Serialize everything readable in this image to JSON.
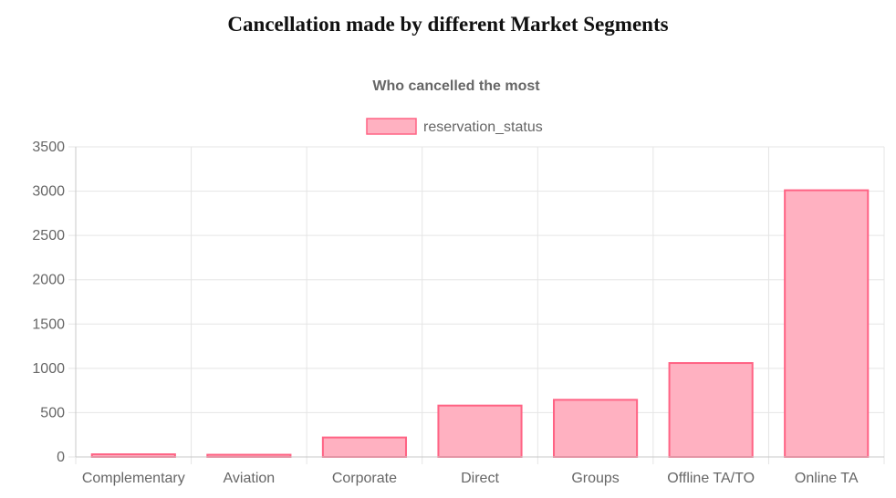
{
  "page": {
    "title": "Cancellation made by different Market Segments"
  },
  "chart_data": {
    "type": "bar",
    "title": "Who cancelled the most",
    "xlabel": "",
    "ylabel": "",
    "categories": [
      "Complementary",
      "Aviation",
      "Corporate",
      "Direct",
      "Groups",
      "Offline TA/TO",
      "Online TA"
    ],
    "series": [
      {
        "name": "reservation_status",
        "values": [
          30,
          25,
          220,
          580,
          645,
          1060,
          3010
        ]
      }
    ],
    "ylim": [
      0,
      3500
    ],
    "yticks": [
      0,
      500,
      1000,
      1500,
      2000,
      2500,
      3000,
      3500
    ],
    "grid": true,
    "legend": "top-center",
    "colors": {
      "bar_fill": "#ffb1c1",
      "bar_border": "#ff6384",
      "grid": "#e5e5e5",
      "axis": "#c8c8c8",
      "text": "#666666"
    }
  }
}
